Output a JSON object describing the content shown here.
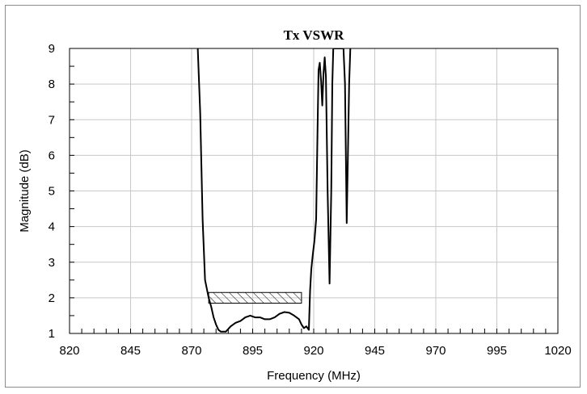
{
  "chart_data": {
    "type": "line",
    "title": "Tx VSWR",
    "xlabel": "Frequency (MHz)",
    "ylabel": "Magnitude (dB)",
    "xlim": [
      820,
      1020
    ],
    "ylim": [
      1,
      9
    ],
    "xticks": [
      820,
      845,
      870,
      895,
      920,
      945,
      970,
      995,
      1020
    ],
    "yticks": [
      1,
      2,
      3,
      4,
      5,
      6,
      7,
      8,
      9
    ],
    "grid": true,
    "legend": "none",
    "line_color": "#000000",
    "grid_color": "#c8c8c8",
    "series": [
      {
        "x": [
          872.5,
          873.5,
          874.5,
          875.5,
          877,
          878,
          879,
          880,
          881,
          882,
          884,
          886,
          888,
          890,
          892,
          894,
          896,
          898,
          900,
          902,
          904,
          906,
          908,
          910,
          912,
          914,
          915,
          916,
          917,
          918,
          918.5,
          919,
          919.6,
          920.3,
          921,
          921.6,
          922,
          922.5,
          923,
          923.5,
          924,
          924.5,
          925,
          925.7,
          926.5,
          927.2,
          927.6,
          928,
          928.5,
          929,
          929.5,
          930,
          930.5,
          931,
          931.6,
          932.2,
          932.8,
          933.5,
          934,
          934.5,
          935
        ],
        "y": [
          9,
          7.2,
          4.2,
          2.5,
          2.0,
          1.75,
          1.45,
          1.25,
          1.1,
          1.05,
          1.05,
          1.2,
          1.3,
          1.35,
          1.45,
          1.5,
          1.45,
          1.45,
          1.4,
          1.4,
          1.45,
          1.55,
          1.6,
          1.58,
          1.5,
          1.4,
          1.25,
          1.15,
          1.2,
          1.1,
          2.2,
          2.8,
          3.2,
          3.6,
          4.2,
          6.8,
          8.4,
          8.6,
          8.1,
          7.4,
          8.3,
          8.75,
          8.2,
          5.0,
          2.4,
          5.0,
          8.0,
          9.0,
          9.0,
          9.0,
          9.0,
          9.0,
          9.0,
          9.0,
          9.0,
          9.0,
          8.0,
          4.1,
          6.0,
          8.0,
          9.0
        ]
      }
    ],
    "spec_box": {
      "x": [
        877,
        915
      ],
      "y": [
        1.85,
        2.15
      ],
      "pattern": "diagonal-hatch"
    }
  }
}
